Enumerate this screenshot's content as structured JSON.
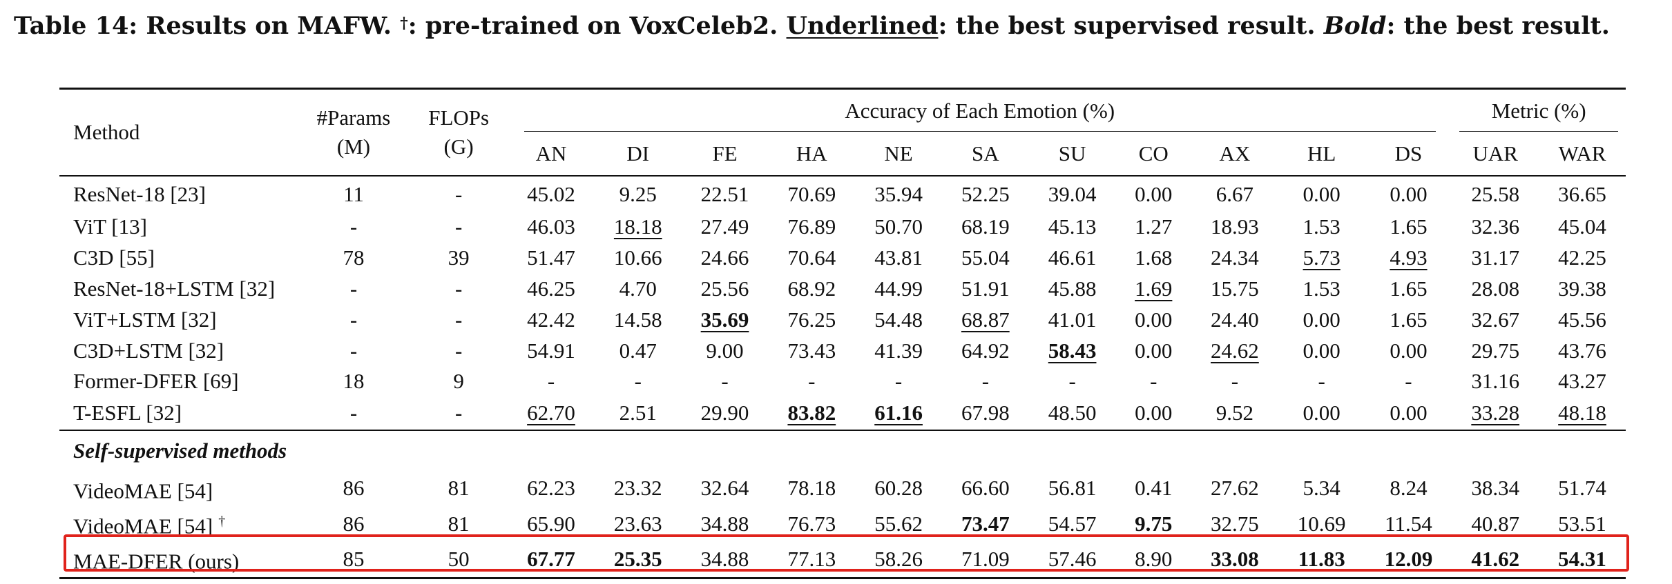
{
  "caption": {
    "prefix": "Table 14: Results on MAFW.",
    "dagger": "†",
    "mid1": ": pre-trained on VoxCeleb2.",
    "underlined_word": "Underlined",
    "mid2": ": the best supervised result.",
    "bold_word": "Bold",
    "end": ": the best result."
  },
  "header": {
    "method": "Method",
    "params_line1": "#Params",
    "params_line2": "(M)",
    "flops_line1": "FLOPs",
    "flops_line2": "(G)",
    "emotion_group": "Accuracy of Each Emotion (%)",
    "metric_group": "Metric (%)",
    "emotions": [
      "AN",
      "DI",
      "FE",
      "HA",
      "NE",
      "SA",
      "SU",
      "CO",
      "AX",
      "HL",
      "DS"
    ],
    "metrics": [
      "UAR",
      "WAR"
    ]
  },
  "supervised_rows": [
    {
      "method": "ResNet-18 [23]",
      "params": "11",
      "flops": "-",
      "values": [
        "45.02",
        "9.25",
        "22.51",
        "70.69",
        "35.94",
        "52.25",
        "39.04",
        "0.00",
        "6.67",
        "0.00",
        "0.00",
        "25.58",
        "36.65"
      ]
    },
    {
      "method": "ViT [13]",
      "params": "-",
      "flops": "-",
      "values": [
        "46.03",
        "18.18",
        "27.49",
        "76.89",
        "50.70",
        "68.19",
        "45.13",
        "1.27",
        "18.93",
        "1.53",
        "1.65",
        "32.36",
        "45.04"
      ]
    },
    {
      "method": "C3D [55]",
      "params": "78",
      "flops": "39",
      "values": [
        "51.47",
        "10.66",
        "24.66",
        "70.64",
        "43.81",
        "55.04",
        "46.61",
        "1.68",
        "24.34",
        "5.73",
        "4.93",
        "31.17",
        "42.25"
      ]
    },
    {
      "method": "ResNet-18+LSTM [32]",
      "params": "-",
      "flops": "-",
      "values": [
        "46.25",
        "4.70",
        "25.56",
        "68.92",
        "44.99",
        "51.91",
        "45.88",
        "1.69",
        "15.75",
        "1.53",
        "1.65",
        "28.08",
        "39.38"
      ]
    },
    {
      "method": "ViT+LSTM [32]",
      "params": "-",
      "flops": "-",
      "values": [
        "42.42",
        "14.58",
        "35.69",
        "76.25",
        "54.48",
        "68.87",
        "41.01",
        "0.00",
        "24.40",
        "0.00",
        "1.65",
        "32.67",
        "45.56"
      ]
    },
    {
      "method": "C3D+LSTM [32]",
      "params": "-",
      "flops": "-",
      "values": [
        "54.91",
        "0.47",
        "9.00",
        "73.43",
        "41.39",
        "64.92",
        "58.43",
        "0.00",
        "24.62",
        "0.00",
        "0.00",
        "29.75",
        "43.76"
      ]
    },
    {
      "method": "Former-DFER [69]",
      "params": "18",
      "flops": "9",
      "values": [
        "-",
        "-",
        "-",
        "-",
        "-",
        "-",
        "-",
        "-",
        "-",
        "-",
        "-",
        "31.16",
        "43.27"
      ]
    },
    {
      "method": "T-ESFL [32]",
      "params": "-",
      "flops": "-",
      "values": [
        "62.70",
        "2.51",
        "29.90",
        "83.82",
        "61.16",
        "67.98",
        "48.50",
        "0.00",
        "9.52",
        "0.00",
        "0.00",
        "33.28",
        "48.18"
      ]
    }
  ],
  "self_supervised_label": "Self-supervised methods",
  "self_supervised_rows": [
    {
      "method": "VideoMAE [54]",
      "dagger": "",
      "params": "86",
      "flops": "81",
      "values": [
        "62.23",
        "23.32",
        "32.64",
        "78.18",
        "60.28",
        "66.60",
        "56.81",
        "0.41",
        "27.62",
        "5.34",
        "8.24",
        "38.34",
        "51.74"
      ]
    },
    {
      "method": "VideoMAE [54]",
      "dagger": "†",
      "params": "86",
      "flops": "81",
      "values": [
        "65.90",
        "23.63",
        "34.88",
        "76.73",
        "55.62",
        "73.47",
        "54.57",
        "9.75",
        "32.75",
        "10.69",
        "11.54",
        "40.87",
        "53.51"
      ]
    },
    {
      "method": "MAE-DFER (ours)",
      "dagger": "",
      "params": "85",
      "flops": "50",
      "values": [
        "67.77",
        "25.35",
        "34.88",
        "77.13",
        "58.26",
        "71.09",
        "57.46",
        "8.90",
        "33.08",
        "11.83",
        "12.09",
        "41.62",
        "54.31"
      ]
    }
  ],
  "highlight_color": "#e0221b"
}
